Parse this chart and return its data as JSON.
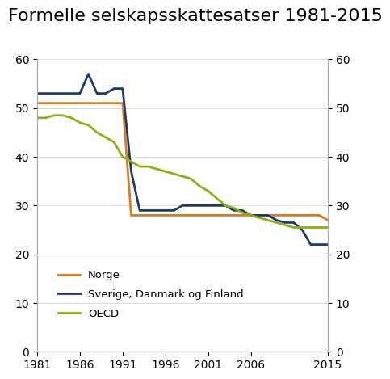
{
  "title": "Formelle selskapsskattesatser 1981-2015",
  "years_norge": [
    1981,
    1982,
    1983,
    1984,
    1985,
    1986,
    1987,
    1988,
    1989,
    1990,
    1991,
    1992,
    1993,
    1994,
    1995,
    1996,
    1997,
    1998,
    1999,
    2000,
    2001,
    2002,
    2003,
    2004,
    2005,
    2006,
    2007,
    2008,
    2009,
    2010,
    2011,
    2012,
    2013,
    2014,
    2015
  ],
  "norge": [
    51,
    51,
    51,
    51,
    51,
    51,
    51,
    51,
    51,
    51,
    51,
    28,
    28,
    28,
    28,
    28,
    28,
    28,
    28,
    28,
    28,
    28,
    28,
    28,
    28,
    28,
    28,
    28,
    28,
    28,
    28,
    28,
    28,
    28,
    27
  ],
  "years_nordic": [
    1981,
    1982,
    1983,
    1984,
    1985,
    1986,
    1987,
    1988,
    1989,
    1990,
    1991,
    1992,
    1993,
    1994,
    1995,
    1996,
    1997,
    1998,
    1999,
    2000,
    2001,
    2002,
    2003,
    2004,
    2005,
    2006,
    2007,
    2008,
    2009,
    2010,
    2011,
    2012,
    2013,
    2014,
    2015
  ],
  "nordic": [
    53,
    53,
    53,
    53,
    53,
    53,
    57,
    53,
    53,
    54,
    54,
    37,
    29,
    29,
    29,
    29,
    29,
    30,
    30,
    30,
    30,
    30,
    30,
    29,
    29,
    28,
    28,
    28,
    27,
    26.5,
    26.5,
    25,
    22,
    22,
    22
  ],
  "years_oecd": [
    1981,
    1982,
    1983,
    1984,
    1985,
    1986,
    1987,
    1988,
    1989,
    1990,
    1991,
    1992,
    1993,
    1994,
    1995,
    1996,
    1997,
    1998,
    1999,
    2000,
    2001,
    2002,
    2003,
    2004,
    2005,
    2006,
    2007,
    2008,
    2009,
    2010,
    2011,
    2012,
    2013,
    2014,
    2015
  ],
  "oecd": [
    48,
    48,
    48.5,
    48.5,
    48,
    47,
    46.5,
    45,
    44,
    43,
    40,
    39,
    38,
    38,
    37.5,
    37,
    36.5,
    36,
    35.5,
    34,
    33,
    31.5,
    30,
    29.5,
    28.5,
    28,
    27.5,
    27,
    26.5,
    26,
    25.5,
    25.5,
    25.5,
    25.5,
    25.5
  ],
  "color_norge": "#E07820",
  "color_nordic": "#1F3A6E",
  "color_oecd": "#8DB010",
  "xlim": [
    1981,
    2015
  ],
  "ylim": [
    0,
    60
  ],
  "yticks": [
    0,
    10,
    20,
    30,
    40,
    50,
    60
  ],
  "xticks": [
    1981,
    1986,
    1991,
    1996,
    2001,
    2006,
    2015
  ],
  "legend_norge": "Norge",
  "legend_nordic": "Sverige, Danmark og Finland",
  "legend_oecd": "OECD",
  "title_fontsize": 16,
  "background_color": "#ffffff"
}
